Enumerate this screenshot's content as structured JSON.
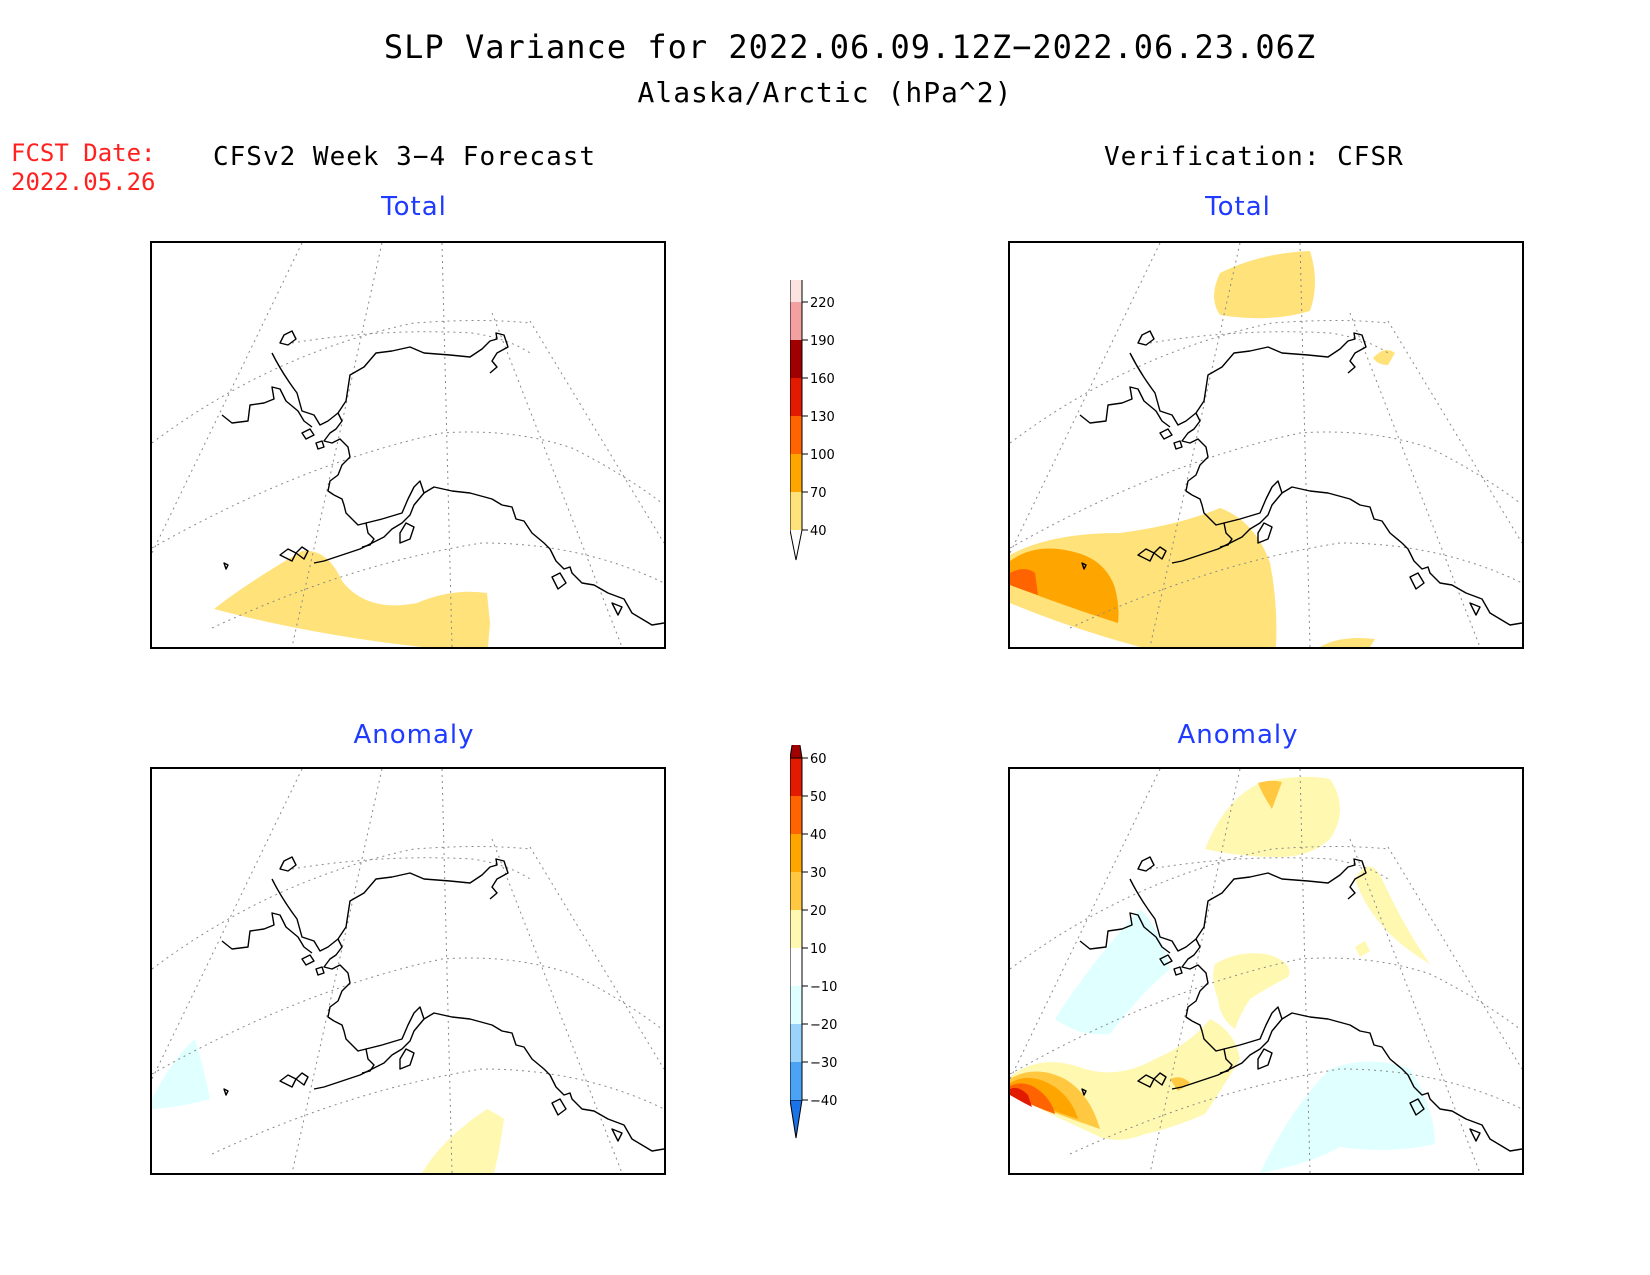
{
  "title": "SLP Variance for 2022.06.09.12Z−2022.06.23.06Z",
  "subtitle": "Alaska/Arctic (hPa^2)",
  "fcst_label": "FCST Date:",
  "fcst_date": "2022.05.26",
  "left_header": "CFSv2 Week 3−4 Forecast",
  "right_header": "Verification: CFSR",
  "panels": {
    "forecast_total": {
      "title": "Total"
    },
    "verification_total": {
      "title": "Total"
    },
    "forecast_anomaly": {
      "title": "Anomaly"
    },
    "verification_anomaly": {
      "title": "Anomaly"
    }
  },
  "total_colorbar": {
    "labels": [
      "40",
      "70",
      "100",
      "130",
      "160",
      "190",
      "220"
    ],
    "colors": [
      "#ffe27a",
      "#ffa500",
      "#ff6400",
      "#e21a00",
      "#a00000",
      "#f2a0a0",
      "#fde2e2"
    ]
  },
  "anomaly_colorbar": {
    "labels": [
      "−40",
      "−30",
      "−20",
      "−10",
      "10",
      "20",
      "30",
      "40",
      "50",
      "60"
    ],
    "colors": [
      "#1a73e8",
      "#4aa3f5",
      "#9cd3fb",
      "#e0ffff",
      "#ffffff",
      "#fff8b0",
      "#ffc840",
      "#ffa500",
      "#ff6400",
      "#e21a00",
      "#a00000"
    ]
  },
  "shading_colors": {
    "total_40_70": "#ffe27a",
    "total_70_100": "#ffa500",
    "total_100_130": "#ff6400",
    "anom_10_20": "#fff8b0",
    "anom_20_30": "#ffc840",
    "anom_30_40": "#ffa500",
    "anom_40_50": "#ff6400",
    "anom_50_60": "#e21a00",
    "anom_m10_m20": "#e0ffff"
  }
}
